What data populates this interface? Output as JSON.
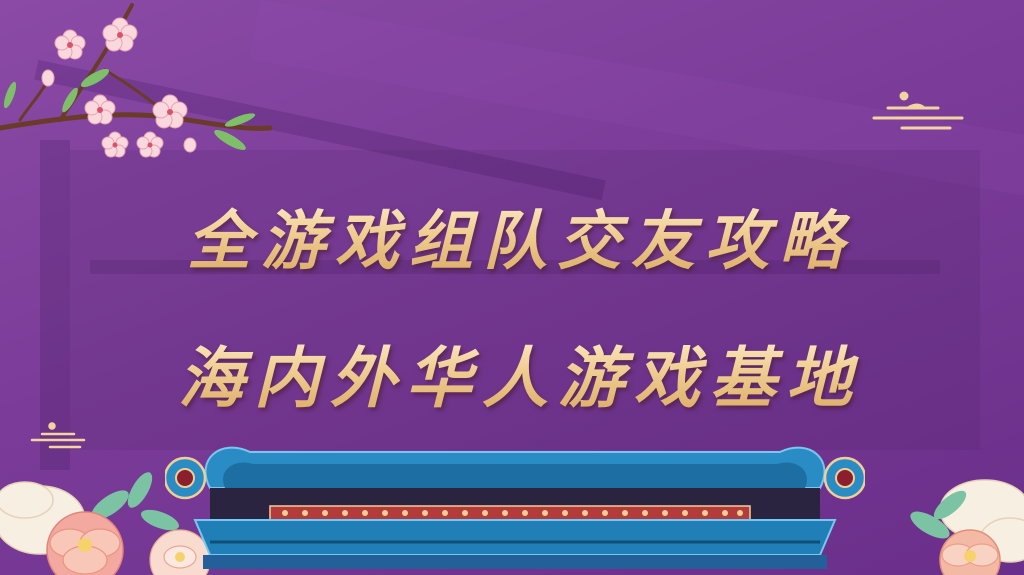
{
  "banner": {
    "title_line_1": "全游戏组队交友攻略",
    "title_line_2": "海内外华人游戏基地"
  },
  "icons": {
    "branch": "plum-blossom-branch-icon",
    "cloud": "auspicious-cloud-icon",
    "peony": "peony-flower-icon",
    "scroll": "scroll-banner-icon"
  },
  "colors": {
    "background": "#7a3c98",
    "title_gold": "#f1cf94",
    "scroll_blue": "#1f7fb6",
    "blossom_pink": "#f6c6cf"
  }
}
